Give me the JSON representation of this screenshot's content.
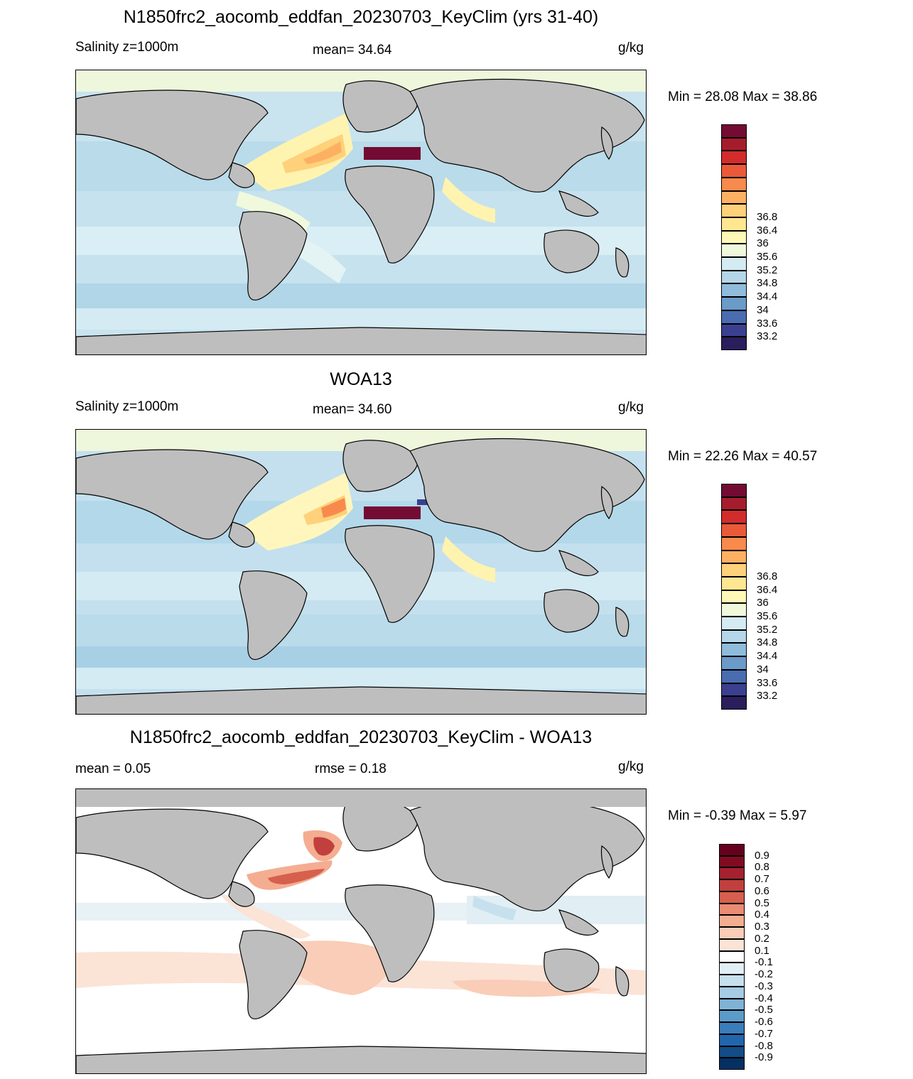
{
  "panels": [
    {
      "title": "N1850frc2_aocomb_eddfan_20230703_KeyClim (yrs 31-40)",
      "left_label": "Salinity z=1000m",
      "center_label": "mean=  34.64",
      "units": "g/kg",
      "minmax": "Min =  28.08 Max =  38.86",
      "field": "salinity_model",
      "colorbar": {
        "colors": [
          "#2a1e5c",
          "#3b3f8f",
          "#4a6cb0",
          "#6a9bc9",
          "#8fbcdb",
          "#b5d6e8",
          "#d4ebf3",
          "#f0f9dc",
          "#fff8b6",
          "#ffe792",
          "#fed17a",
          "#fdb062",
          "#f88a4d",
          "#ea5a39",
          "#d22c2c",
          "#a51d2d",
          "#730b33"
        ],
        "labels": [
          "33.2",
          "33.6",
          "34",
          "34.4",
          "34.8",
          "35.2",
          "35.6",
          "36",
          "36.4",
          "36.8"
        ]
      }
    },
    {
      "title": "WOA13",
      "left_label": "Salinity z=1000m",
      "center_label": "mean=  34.60",
      "units": "g/kg",
      "minmax": "Min =  22.26 Max =  40.57",
      "field": "salinity_obs",
      "colorbar": {
        "colors": [
          "#2a1e5c",
          "#3b3f8f",
          "#4a6cb0",
          "#6a9bc9",
          "#8fbcdb",
          "#b5d6e8",
          "#d4ebf3",
          "#f0f9dc",
          "#fff8b6",
          "#ffe792",
          "#fed17a",
          "#fdb062",
          "#f88a4d",
          "#ea5a39",
          "#d22c2c",
          "#a51d2d",
          "#730b33"
        ],
        "labels": [
          "33.2",
          "33.6",
          "34",
          "34.4",
          "34.8",
          "35.2",
          "35.6",
          "36",
          "36.4",
          "36.8"
        ]
      }
    },
    {
      "title": "N1850frc2_aocomb_eddfan_20230703_KeyClim - WOA13",
      "left_label": "mean =   0.05",
      "center_label": "rmse =   0.18",
      "units": "g/kg",
      "minmax": "Min =  -0.39 Max =   5.97",
      "field": "salinity_diff",
      "colorbar": {
        "colors": [
          "#053061",
          "#134c87",
          "#2166ac",
          "#3a7dba",
          "#5b9bc8",
          "#7fb3d5",
          "#a5cce3",
          "#c7e0ed",
          "#e1eef4",
          "#ffffff",
          "#fbe3d6",
          "#f9cdb7",
          "#f4ad91",
          "#ea8b73",
          "#d6604d",
          "#c1403d",
          "#a52130",
          "#820b22",
          "#67001f"
        ],
        "labels": [
          "-0.9",
          "-0.8",
          "-0.7",
          "-0.6",
          "-0.5",
          "-0.4",
          "-0.3",
          "-0.2",
          "-0.1",
          "0.1",
          "0.2",
          "0.3",
          "0.4",
          "0.5",
          "0.6",
          "0.7",
          "0.8",
          "0.9"
        ]
      }
    }
  ]
}
